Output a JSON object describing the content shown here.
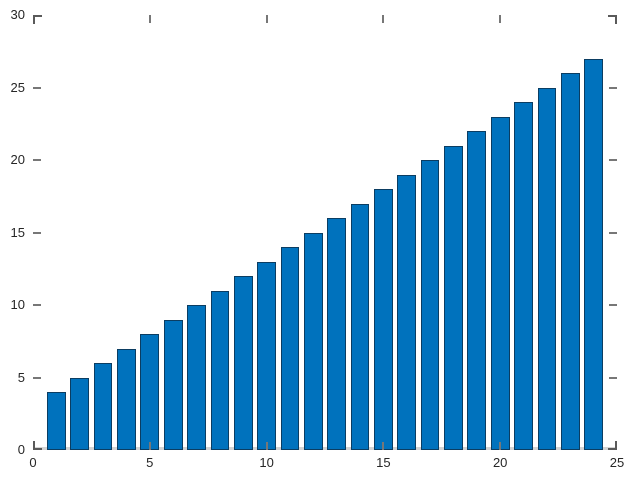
{
  "chart_data": {
    "type": "bar",
    "title": "",
    "xlabel": "",
    "ylabel": "",
    "x": [
      1,
      2,
      3,
      4,
      5,
      6,
      7,
      8,
      9,
      10,
      11,
      12,
      13,
      14,
      15,
      16,
      17,
      18,
      19,
      20,
      21,
      22,
      23,
      24
    ],
    "values": [
      4,
      5,
      6,
      7,
      8,
      9,
      10,
      11,
      12,
      13,
      14,
      15,
      16,
      17,
      18,
      19,
      20,
      21,
      22,
      23,
      24,
      25,
      26,
      27
    ],
    "bar_width": 0.8,
    "xlim": [
      0,
      25
    ],
    "ylim": [
      0,
      30
    ],
    "xticks": [
      0,
      5,
      10,
      15,
      20,
      25
    ],
    "xtick_labels": [
      "0",
      "5",
      "10",
      "15",
      "20",
      "25"
    ],
    "yticks": [
      0,
      5,
      10,
      15,
      20,
      25,
      30
    ],
    "ytick_labels": [
      "0",
      "5",
      "10",
      "15",
      "20",
      "25",
      "30"
    ],
    "grid": false,
    "legend": null,
    "tick_style": "inward-all-four-sides-with-corner-brackets",
    "colors": {
      "bar_fill": "#0072BD",
      "bar_edge": "#0B3D62",
      "tick": "#777777",
      "corner": "#5A5A5A",
      "label": "#262626",
      "baseline": "#D4D4D4",
      "background": "#FFFFFF"
    }
  }
}
